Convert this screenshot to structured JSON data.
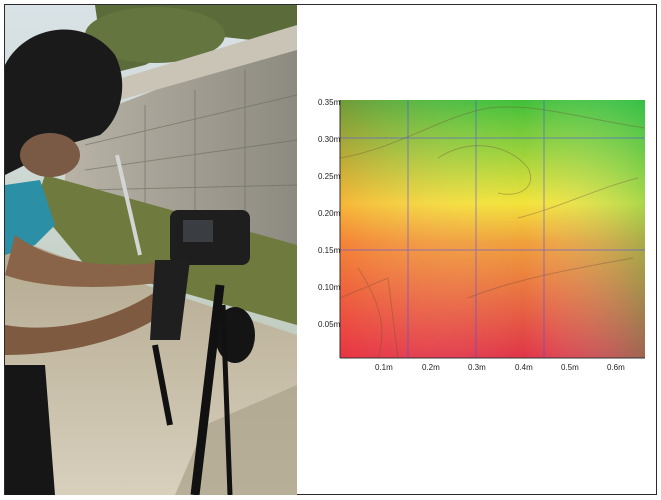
{
  "heatmap": {
    "y_ticks": [
      "0.35m",
      "0.30m",
      "0.25m",
      "0.20m",
      "0.15m",
      "0.10m",
      "0.05m"
    ],
    "x_ticks": [
      "0.1m",
      "0.2m",
      "0.3m",
      "0.4m",
      "0.5m",
      "0.6m"
    ],
    "colors": {
      "top": "#3fbf3a",
      "middle": "#f3e33a",
      "bottom": "#e03448",
      "grid": "#4a4af0"
    }
  }
}
